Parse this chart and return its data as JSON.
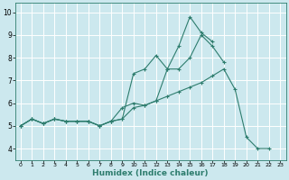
{
  "xlabel": "Humidex (Indice chaleur)",
  "bg_color": "#cce8ee",
  "grid_color": "#ffffff",
  "line_color": "#2e7d6e",
  "xlim": [
    -0.5,
    23.5
  ],
  "ylim": [
    3.5,
    10.4
  ],
  "yticks": [
    4,
    5,
    6,
    7,
    8,
    9,
    10
  ],
  "xticks": [
    0,
    1,
    2,
    3,
    4,
    5,
    6,
    7,
    8,
    9,
    10,
    11,
    12,
    13,
    14,
    15,
    16,
    17,
    18,
    19,
    20,
    21,
    22,
    23
  ],
  "line1_x": [
    0,
    1,
    2,
    3,
    4,
    5,
    6,
    7,
    8,
    9,
    10,
    11,
    12,
    13,
    14,
    15,
    16,
    17,
    18,
    19,
    20,
    21,
    22
  ],
  "line1_y": [
    5.0,
    5.3,
    5.1,
    5.3,
    5.2,
    5.2,
    5.2,
    5.0,
    5.2,
    5.3,
    5.8,
    5.9,
    6.1,
    6.3,
    6.5,
    6.7,
    6.9,
    7.2,
    7.5,
    6.6,
    4.5,
    4.0,
    4.0
  ],
  "line2_x": [
    0,
    1,
    2,
    3,
    4,
    5,
    6,
    7,
    8,
    9,
    10,
    11,
    12,
    13,
    14,
    15,
    16,
    17
  ],
  "line2_y": [
    5.0,
    5.3,
    5.1,
    5.3,
    5.2,
    5.2,
    5.2,
    5.0,
    5.2,
    5.3,
    7.3,
    7.5,
    8.1,
    7.5,
    8.5,
    9.8,
    9.1,
    8.7
  ],
  "line3_x": [
    0,
    1,
    2,
    3,
    4,
    5,
    6,
    7,
    8,
    9,
    10,
    11,
    12,
    13,
    14,
    15,
    16,
    17,
    18
  ],
  "line3_y": [
    5.0,
    5.3,
    5.1,
    5.3,
    5.2,
    5.2,
    5.2,
    5.0,
    5.2,
    5.8,
    6.0,
    5.9,
    6.1,
    7.5,
    7.5,
    8.0,
    9.0,
    8.5,
    7.8
  ],
  "marker": "+",
  "markersize": 3,
  "linewidth": 0.8
}
